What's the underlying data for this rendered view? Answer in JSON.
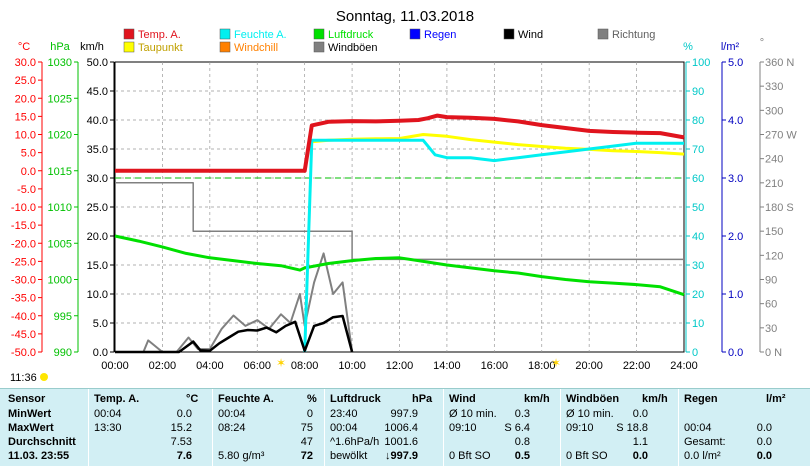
{
  "title": "Sonntag, 11.03.2018",
  "units": {
    "temp": "°C",
    "pressure": "hPa",
    "wind": "km/h",
    "humidity": "%",
    "rain": "l/m²",
    "direction": "°"
  },
  "legend": [
    {
      "label": "Temp. A.",
      "color": "#e0141e"
    },
    {
      "label": "Taupunkt",
      "color": "#ffff00"
    },
    {
      "label": "Feuchte A.",
      "color": "#00f0f0"
    },
    {
      "label": "Windchill",
      "color": "#ff8000"
    },
    {
      "label": "Luftdruck",
      "color": "#00e000"
    },
    {
      "label": "Windböen",
      "color": "#808080"
    },
    {
      "label": "Regen",
      "color": "#0000ff"
    },
    {
      "label": "Wind",
      "color": "#000000"
    },
    {
      "label": "Richtung",
      "color": "#808080"
    }
  ],
  "current_time": "11:36",
  "chart_data": {
    "type": "line",
    "x_ticks": [
      "00:00",
      "02:00",
      "04:00",
      "06:00",
      "08:00",
      "10:00",
      "12:00",
      "14:00",
      "16:00",
      "18:00",
      "20:00",
      "22:00",
      "24:00"
    ],
    "axes": {
      "temp": {
        "ticks": [
          "30.0",
          "25.0",
          "20.0",
          "15.0",
          "10.0",
          "5.0",
          "0.0",
          "-5.0",
          "-10.0",
          "-15.0",
          "-20.0",
          "-25.0",
          "-30.0",
          "-35.0",
          "-40.0",
          "-45.0",
          "-50.0"
        ],
        "range": [
          -50,
          30
        ]
      },
      "pressure": {
        "ticks": [
          "1030",
          "1025",
          "1020",
          "1015",
          "1010",
          "1005",
          "1000",
          "995",
          "990"
        ],
        "range": [
          990,
          1030
        ]
      },
      "wind": {
        "ticks": [
          "50.0",
          "45.0",
          "40.0",
          "35.0",
          "30.0",
          "25.0",
          "20.0",
          "15.0",
          "10.0",
          "5.0",
          "0.0"
        ],
        "range": [
          0,
          50
        ]
      },
      "humidity": {
        "ticks": [
          "100",
          "90",
          "80",
          "70",
          "60",
          "50",
          "40",
          "30",
          "20",
          "10",
          "0"
        ],
        "range": [
          0,
          100
        ]
      },
      "rain": {
        "ticks": [
          "5.0",
          "4.0",
          "3.0",
          "2.0",
          "1.0",
          "0.0"
        ],
        "range": [
          0,
          5
        ]
      },
      "direction": {
        "ticks": [
          "360 N",
          "330",
          "300",
          "270 W",
          "240",
          "210",
          "180 S",
          "150",
          "120",
          "90",
          "60",
          "30",
          "0 N"
        ],
        "range": [
          0,
          360
        ]
      }
    },
    "series": [
      {
        "name": "Temp. A.",
        "axis": "temp",
        "color": "#e0141e",
        "x": [
          0,
          8,
          8.3,
          9,
          10,
          11,
          12,
          12.8,
          13.2,
          13.6,
          14,
          15,
          16,
          17,
          18,
          19,
          20,
          21,
          22,
          23,
          24
        ],
        "y": [
          0,
          0,
          12.5,
          13.5,
          13.7,
          13.6,
          13.8,
          14.0,
          14.5,
          15.2,
          14.8,
          14.6,
          14.3,
          13.6,
          12.6,
          11.8,
          11.0,
          10.7,
          10.5,
          10.4,
          9.2
        ]
      },
      {
        "name": "Taupunkt",
        "axis": "temp",
        "color": "#ffff00",
        "x": [
          8.3,
          9,
          10,
          11,
          12,
          13,
          14,
          15,
          16,
          17,
          18,
          19,
          20,
          21,
          22,
          23,
          24
        ],
        "y": [
          8.0,
          8.4,
          8.7,
          8.8,
          8.9,
          10.0,
          9.5,
          8.6,
          7.9,
          7.2,
          6.7,
          6.2,
          5.9,
          5.5,
          5.3,
          5.0,
          4.6
        ]
      },
      {
        "name": "Feuchte A.",
        "axis": "humidity",
        "color": "#00f0f0",
        "x": [
          8,
          8.3,
          9,
          10,
          11,
          12,
          13,
          13.5,
          14,
          15,
          16,
          17,
          18,
          19,
          20,
          21,
          22,
          23,
          24
        ],
        "y": [
          0,
          73,
          73,
          73,
          73,
          73,
          73,
          68,
          67,
          67,
          66,
          67,
          68,
          69,
          70,
          71,
          72,
          72,
          72
        ]
      },
      {
        "name": "Luftdruck",
        "axis": "pressure",
        "color": "#00e000",
        "x": [
          0,
          1,
          2,
          3,
          4,
          5,
          6,
          7,
          7.8,
          8,
          9,
          10,
          11,
          12,
          13,
          14,
          15,
          16,
          17,
          18,
          19,
          20,
          21,
          22,
          23,
          24
        ],
        "y": [
          1006.0,
          1005.3,
          1004.5,
          1003.6,
          1003.0,
          1002.6,
          1002.2,
          1001.9,
          1001.3,
          1001.6,
          1002.2,
          1002.6,
          1002.9,
          1003.0,
          1002.5,
          1002.0,
          1001.6,
          1001.2,
          1000.9,
          1000.4,
          1000.0,
          999.7,
          999.5,
          999.3,
          999.0,
          997.9
        ]
      },
      {
        "name": "Wind",
        "axis": "wind",
        "color": "#000000",
        "x": [
          0,
          2.7,
          3.3,
          3.6,
          4,
          4.4,
          4.8,
          5.2,
          5.6,
          6,
          6.4,
          6.8,
          7.2,
          7.6,
          8,
          8.4,
          8.8,
          9.2,
          9.6,
          10
        ],
        "y": [
          0,
          0,
          1.8,
          0.3,
          0.2,
          1.5,
          2.5,
          3.5,
          3.8,
          3.7,
          4.2,
          3.4,
          4.5,
          5.2,
          0.2,
          4.5,
          5.0,
          6.0,
          6.2,
          0
        ]
      },
      {
        "name": "Windböen",
        "axis": "wind",
        "color": "#808080",
        "x": [
          0,
          1.2,
          1.4,
          2,
          2.6,
          3.1,
          3.5,
          4,
          4.5,
          5,
          5.5,
          6,
          6.5,
          7,
          7.4,
          7.8,
          8,
          8.4,
          8.8,
          9.2,
          9.6,
          10
        ],
        "y": [
          0,
          0,
          2,
          0,
          0,
          2.5,
          0.5,
          0.5,
          4,
          6.3,
          4.5,
          5.5,
          4,
          6.5,
          5,
          10,
          4.5,
          12,
          17,
          10,
          12,
          0
        ]
      },
      {
        "name": "Richtung",
        "axis": "direction",
        "color": "#808080",
        "x": [
          0,
          3.3,
          3.3,
          10,
          10,
          24
        ],
        "y": [
          210,
          210,
          150,
          150,
          115,
          115
        ]
      }
    ],
    "grid": true
  },
  "table": {
    "headers": [
      "Sensor",
      "Temp. A.",
      "°C",
      "Feuchte A.",
      "%",
      "Luftdruck",
      "hPa",
      "Wind",
      "km/h",
      "Windböen",
      "km/h",
      "Regen",
      "l/m²"
    ],
    "rows": [
      {
        "label": "MinWert",
        "cells": [
          "00:04",
          "0.0",
          "00:04",
          "0",
          "23:40",
          "997.9",
          "Ø 10 min.",
          "0.3",
          "Ø 10 min.",
          "0.0",
          "",
          ""
        ]
      },
      {
        "label": "MaxWert",
        "cells": [
          "13:30",
          "15.2",
          "08:24",
          "75",
          "00:04",
          "1006.4",
          "09:10",
          "S 6.4",
          "09:10",
          "S 18.8",
          "00:04",
          "0.0"
        ]
      },
      {
        "label": "Durchschnitt",
        "cells": [
          "",
          "7.53",
          "",
          "47",
          "^1.6hPa/h",
          "1001.6",
          "",
          "0.8",
          "",
          "1.1",
          "Gesamt:",
          "0.0"
        ]
      },
      {
        "label": "11.03. 23:55",
        "cells": [
          "",
          "7.6",
          "5.80 g/m³",
          "72",
          "bewölkt",
          "↓997.9",
          "0 Bft SO",
          "0.5",
          "0 Bft SO",
          "0.0",
          "0.0 l/m²",
          "0.0"
        ]
      }
    ]
  }
}
